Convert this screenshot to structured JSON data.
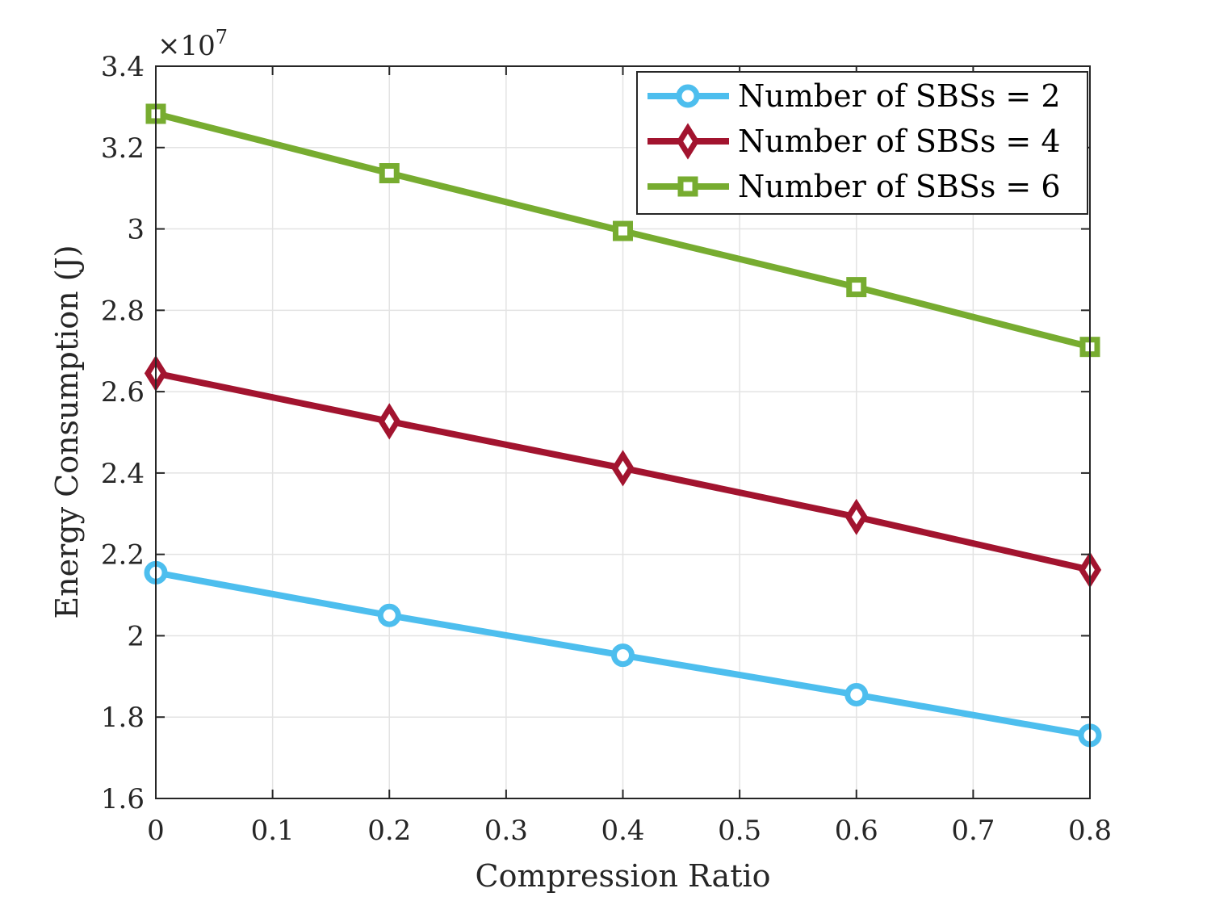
{
  "chart_data": {
    "type": "line",
    "xlabel": "Compression Ratio",
    "ylabel": "Energy Consumption (J)",
    "xlim": [
      0,
      0.8
    ],
    "ylim": [
      1.6,
      3.4
    ],
    "y_multiplier_base": "×10",
    "y_multiplier_exp": "7",
    "grid": true,
    "legend_position": "top-right",
    "x_ticks": [
      "0",
      "0.1",
      "0.2",
      "0.3",
      "0.4",
      "0.5",
      "0.6",
      "0.7",
      "0.8"
    ],
    "y_ticks": [
      "1.6",
      "1.8",
      "2",
      "2.2",
      "2.4",
      "2.6",
      "2.8",
      "3",
      "3.2",
      "3.4"
    ],
    "x": [
      0,
      0.2,
      0.4,
      0.6,
      0.8
    ],
    "series": [
      {
        "name": "Number of SBSs = 2",
        "values": [
          2.155,
          2.05,
          1.952,
          1.855,
          1.755
        ],
        "color": "#4DBEEE",
        "marker": "circle"
      },
      {
        "name": "Number of SBSs = 4",
        "values": [
          2.645,
          2.527,
          2.412,
          2.292,
          2.162
        ],
        "color": "#A2142F",
        "marker": "diamond"
      },
      {
        "name": "Number of SBSs = 6",
        "values": [
          3.283,
          3.137,
          2.995,
          2.857,
          2.71
        ],
        "color": "#77AC30",
        "marker": "square"
      }
    ]
  }
}
